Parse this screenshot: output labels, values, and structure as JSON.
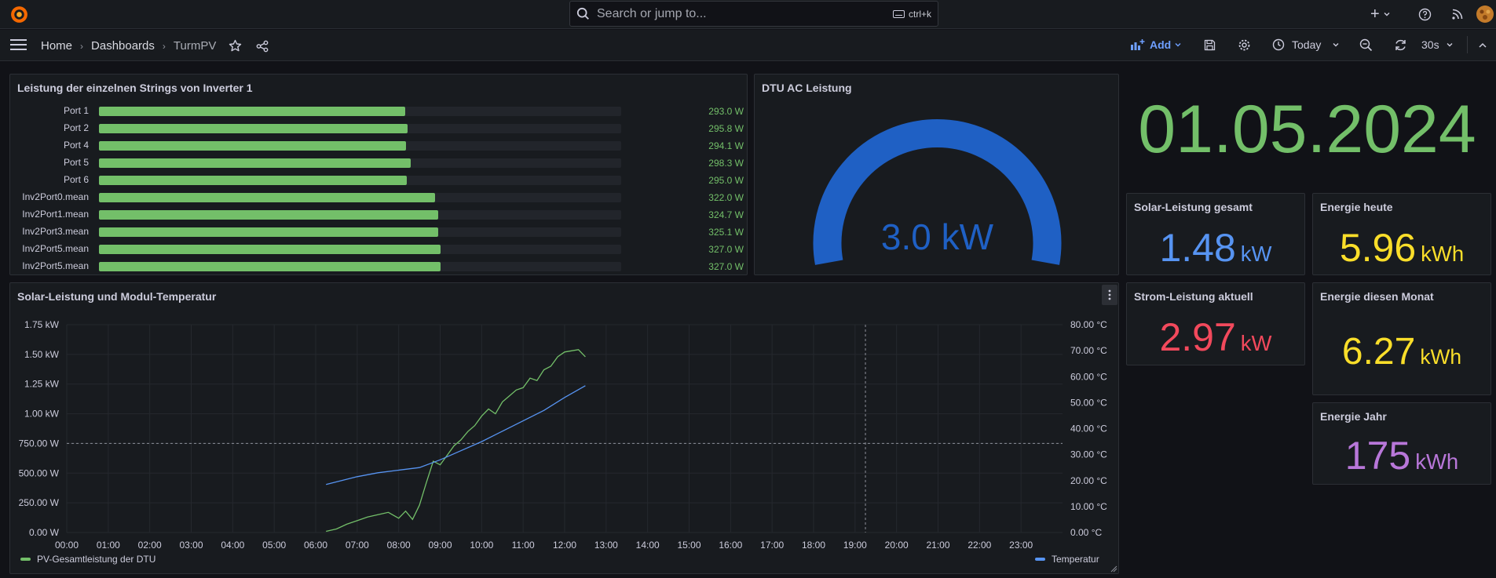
{
  "topbar": {
    "search_placeholder": "Search or jump to...",
    "search_shortcut": "ctrl+k",
    "plus_symbol": "+"
  },
  "breadcrumb": [
    "Home",
    "Dashboards",
    "TurmPV"
  ],
  "toolbar": {
    "add_label": "Add",
    "time_range": "Today",
    "refresh_interval": "30s"
  },
  "colors": {
    "green": "#73bf69",
    "blue": "#1f60c4",
    "light_blue": "#5794f2",
    "red": "#f2495c",
    "yellow": "#fade2a",
    "purple": "#b877d9"
  },
  "panels": {
    "strings": {
      "title": "Leistung der einzelnen Strings von Inverter 1",
      "max_w": 500,
      "rows": [
        {
          "label": "Port 1",
          "value": 293.0,
          "text": "293.0 W"
        },
        {
          "label": "Port 2",
          "value": 295.8,
          "text": "295.8 W"
        },
        {
          "label": "Port 4",
          "value": 294.1,
          "text": "294.1 W"
        },
        {
          "label": "Port 5",
          "value": 298.3,
          "text": "298.3 W"
        },
        {
          "label": "Port 6",
          "value": 295.0,
          "text": "295.0 W"
        },
        {
          "label": "Inv2Port0.mean",
          "value": 322.0,
          "text": "322.0 W"
        },
        {
          "label": "Inv2Port1.mean",
          "value": 324.7,
          "text": "324.7 W"
        },
        {
          "label": "Inv2Port3.mean",
          "value": 325.1,
          "text": "325.1 W"
        },
        {
          "label": "Inv2Port5.mean",
          "value": 327.0,
          "text": "327.0 W"
        },
        {
          "label": "Inv2Port5.mean",
          "value": 327.0,
          "text": "327.0 W"
        }
      ]
    },
    "gauge": {
      "title": "DTU AC Leistung",
      "value": 3.0,
      "max": 3.0,
      "text": "3.0 kW"
    },
    "date": {
      "value": "01.05.2024"
    },
    "solar_total": {
      "title": "Solar-Leistung gesamt",
      "value": "1.48",
      "unit": "kW"
    },
    "energy_today": {
      "title": "Energie heute",
      "value": "5.96",
      "unit": "kWh"
    },
    "power_now": {
      "title": "Strom-Leistung aktuell",
      "value": "2.97",
      "unit": "kW"
    },
    "energy_month": {
      "title": "Energie diesen Monat",
      "value": "6.27",
      "unit": "kWh"
    },
    "energy_year": {
      "title": "Energie Jahr",
      "value": "175",
      "unit": "kWh"
    },
    "timeseries": {
      "title": "Solar-Leistung und Modul-Temperatur"
    }
  },
  "chart_data": {
    "type": "line",
    "title": "Solar-Leistung und Modul-Temperatur",
    "x_ticks": [
      "00:00",
      "01:00",
      "02:00",
      "03:00",
      "04:00",
      "05:00",
      "06:00",
      "07:00",
      "08:00",
      "09:00",
      "10:00",
      "11:00",
      "12:00",
      "13:00",
      "14:00",
      "15:00",
      "16:00",
      "17:00",
      "18:00",
      "19:00",
      "20:00",
      "21:00",
      "22:00",
      "23:00"
    ],
    "y_left_ticks": [
      "0.00 W",
      "250.00 W",
      "500.00 W",
      "750.00 W",
      "1.00 kW",
      "1.25 kW",
      "1.50 kW",
      "1.75 kW"
    ],
    "y_right_ticks": [
      "0.00 °C",
      "10.00 °C",
      "20.00 °C",
      "30.00 °C",
      "40.00 °C",
      "50.00 °C",
      "60.00 °C",
      "70.00 °C",
      "80.00 °C"
    ],
    "y_left_range": [
      0,
      1750
    ],
    "y_right_range": [
      0,
      80
    ],
    "x_range_hours": [
      0,
      24
    ],
    "threshold_w": 750,
    "marker_time": "19:15",
    "series": [
      {
        "name": "PV-Gesamtleistung der DTU",
        "axis": "left",
        "color": "#73bf69",
        "x": [
          "06:15",
          "06:30",
          "06:45",
          "07:00",
          "07:15",
          "07:30",
          "07:45",
          "08:00",
          "08:10",
          "08:20",
          "08:30",
          "08:40",
          "08:50",
          "09:00",
          "09:10",
          "09:20",
          "09:30",
          "09:40",
          "09:50",
          "10:00",
          "10:10",
          "10:20",
          "10:30",
          "10:40",
          "10:50",
          "11:00",
          "11:10",
          "11:20",
          "11:30",
          "11:40",
          "11:50",
          "12:00",
          "12:10",
          "12:20",
          "12:30"
        ],
        "values": [
          10,
          30,
          70,
          100,
          130,
          150,
          170,
          120,
          180,
          110,
          230,
          420,
          600,
          570,
          650,
          730,
          780,
          850,
          900,
          980,
          1040,
          1000,
          1100,
          1150,
          1200,
          1220,
          1300,
          1280,
          1370,
          1400,
          1480,
          1520,
          1530,
          1540,
          1480
        ]
      },
      {
        "name": "Temperatur",
        "axis": "right",
        "color": "#5794f2",
        "x": [
          "06:15",
          "07:00",
          "07:30",
          "08:00",
          "08:30",
          "09:00",
          "09:30",
          "10:00",
          "10:30",
          "11:00",
          "11:30",
          "12:00",
          "12:30"
        ],
        "values": [
          18.5,
          21.5,
          23,
          24,
          25,
          28,
          31.5,
          35,
          39,
          43,
          47,
          52,
          56.5
        ]
      }
    ],
    "legend_position": "bottom"
  }
}
